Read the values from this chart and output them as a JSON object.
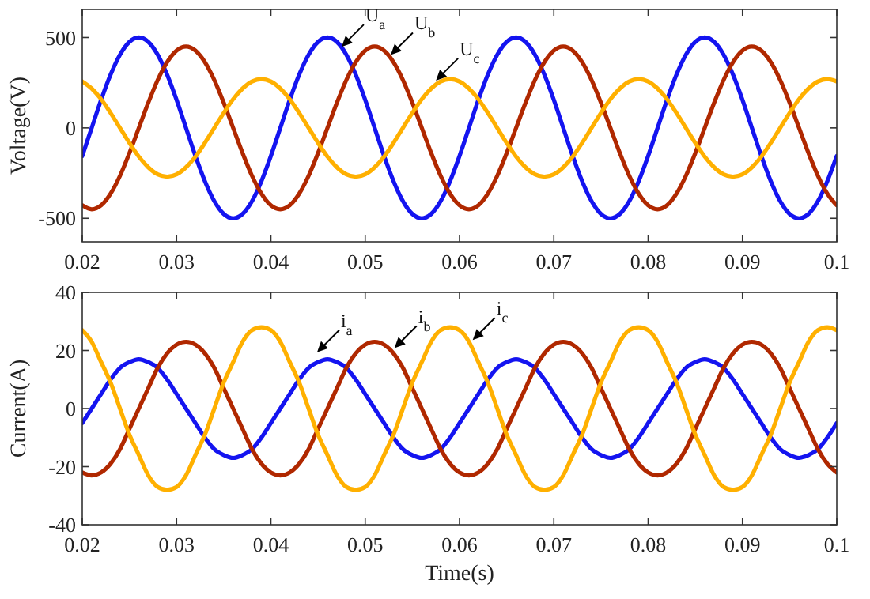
{
  "chart_data": [
    {
      "type": "line",
      "ylabel": "Voltage(V)",
      "xlim": [
        0.02,
        0.1
      ],
      "xticks": [
        0.02,
        0.03,
        0.04,
        0.05,
        0.06,
        0.07,
        0.08,
        0.09,
        0.1
      ],
      "ylim": [
        -630,
        655
      ],
      "yticks": [
        -500,
        0,
        500
      ],
      "x": [
        0.02,
        0.021,
        0.022,
        0.023,
        0.024,
        0.025,
        0.026,
        0.027,
        0.028,
        0.029,
        0.03,
        0.031,
        0.032,
        0.033,
        0.034,
        0.035,
        0.036,
        0.037,
        0.038,
        0.039,
        0.04,
        0.041,
        0.042,
        0.043,
        0.044,
        0.045,
        0.046,
        0.047,
        0.048,
        0.049,
        0.05,
        0.051,
        0.052,
        0.053,
        0.054,
        0.055,
        0.056,
        0.057,
        0.058,
        0.059,
        0.06,
        0.061,
        0.062,
        0.063,
        0.064,
        0.065,
        0.066,
        0.067,
        0.068,
        0.069,
        0.07,
        0.071,
        0.072,
        0.073,
        0.074,
        0.075,
        0.076,
        0.077,
        0.078,
        0.079,
        0.08,
        0.081,
        0.082,
        0.083,
        0.084,
        0.085,
        0.086,
        0.087,
        0.088,
        0.089,
        0.09,
        0.091,
        0.092,
        0.093,
        0.094,
        0.095,
        0.096,
        0.097,
        0.098,
        0.099,
        0.1
      ],
      "series": [
        {
          "color": "#1414f0",
          "values": [
            -155,
            0,
            155,
            294,
            405,
            476,
            500,
            476,
            405,
            294,
            155,
            0,
            -155,
            -294,
            -405,
            -476,
            -500,
            -476,
            -405,
            -294,
            -155,
            0,
            155,
            294,
            405,
            476,
            500,
            476,
            405,
            294,
            155,
            0,
            -155,
            -294,
            -405,
            -476,
            -500,
            -476,
            -405,
            -294,
            -155,
            0,
            155,
            294,
            405,
            476,
            500,
            476,
            405,
            294,
            155,
            0,
            -155,
            -294,
            -405,
            -476,
            -500,
            -476,
            -405,
            -294,
            -155,
            0,
            155,
            294,
            405,
            476,
            500,
            476,
            405,
            294,
            155,
            0,
            -155,
            -294,
            -405,
            -476,
            -500,
            -476,
            -405,
            -294,
            -155
          ]
        },
        {
          "color": "#b02800",
          "values": [
            -428,
            -450,
            -428,
            -364,
            -265,
            -139,
            0,
            139,
            265,
            364,
            428,
            450,
            428,
            364,
            265,
            139,
            0,
            -139,
            -265,
            -364,
            -428,
            -450,
            -428,
            -364,
            -265,
            -139,
            0,
            139,
            265,
            364,
            428,
            450,
            428,
            364,
            265,
            139,
            0,
            -139,
            -265,
            -364,
            -428,
            -450,
            -428,
            -364,
            -265,
            -139,
            0,
            139,
            265,
            364,
            428,
            450,
            428,
            364,
            265,
            139,
            0,
            -139,
            -265,
            -364,
            -428,
            -450,
            -428,
            -364,
            -265,
            -139,
            0,
            139,
            265,
            364,
            428,
            450,
            428,
            364,
            265,
            139,
            0,
            -139,
            -265,
            -364,
            -428
          ]
        },
        {
          "color": "#ffb000",
          "values": [
            257,
            218,
            159,
            83,
            0,
            -83,
            -159,
            -218,
            -257,
            -270,
            -257,
            -218,
            -159,
            -83,
            0,
            83,
            159,
            218,
            257,
            270,
            257,
            218,
            159,
            83,
            0,
            -83,
            -159,
            -218,
            -257,
            -270,
            -257,
            -218,
            -159,
            -83,
            0,
            83,
            159,
            218,
            257,
            270,
            257,
            218,
            159,
            83,
            0,
            -83,
            -159,
            -218,
            -257,
            -270,
            -257,
            -218,
            -159,
            -83,
            0,
            83,
            159,
            218,
            257,
            270,
            257,
            218,
            159,
            83,
            0,
            -83,
            -159,
            -218,
            -257,
            -270,
            -257,
            -218,
            -159,
            -83,
            0,
            83,
            159,
            218,
            257,
            270,
            257
          ]
        }
      ],
      "annotations": [
        {
          "text": "U$_{a}$",
          "x": 0.0475,
          "y": 449
        },
        {
          "text": "U$_{b}$",
          "x": 0.0527,
          "y": 404
        },
        {
          "text": "U$_{c}$",
          "x": 0.0575,
          "y": 262
        }
      ]
    },
    {
      "type": "line",
      "xlabel": "Time(s)",
      "ylabel": "Current(A)",
      "xlim": [
        0.02,
        0.1
      ],
      "xticks": [
        0.02,
        0.03,
        0.04,
        0.05,
        0.06,
        0.07,
        0.08,
        0.09,
        0.1
      ],
      "ylim": [
        -40,
        40
      ],
      "yticks": [
        -40,
        -20,
        0,
        20,
        40
      ],
      "x": [
        0.02,
        0.021,
        0.022,
        0.023,
        0.024,
        0.025,
        0.026,
        0.027,
        0.028,
        0.029,
        0.03,
        0.031,
        0.032,
        0.033,
        0.034,
        0.035,
        0.036,
        0.037,
        0.038,
        0.039,
        0.04,
        0.041,
        0.042,
        0.043,
        0.044,
        0.045,
        0.046,
        0.047,
        0.048,
        0.049,
        0.05,
        0.051,
        0.052,
        0.053,
        0.054,
        0.055,
        0.056,
        0.057,
        0.058,
        0.059,
        0.06,
        0.061,
        0.062,
        0.063,
        0.064,
        0.065,
        0.066,
        0.067,
        0.068,
        0.069,
        0.07,
        0.071,
        0.072,
        0.073,
        0.074,
        0.075,
        0.076,
        0.077,
        0.078,
        0.079,
        0.08,
        0.081,
        0.082,
        0.083,
        0.084,
        0.085,
        0.086,
        0.087,
        0.088,
        0.089,
        0.09,
        0.091,
        0.092,
        0.093,
        0.094,
        0.095,
        0.096,
        0.097,
        0.098,
        0.099,
        0.1
      ],
      "series": [
        {
          "color": "#1414f0",
          "values": [
            -5,
            0,
            5,
            10,
            14,
            16,
            17,
            16,
            14,
            10,
            5,
            0,
            -5,
            -10,
            -14,
            -16,
            -17,
            -16,
            -14,
            -10,
            -5,
            0,
            5,
            10,
            14,
            16,
            17,
            16,
            14,
            10,
            5,
            0,
            -5,
            -10,
            -14,
            -16,
            -17,
            -16,
            -14,
            -10,
            -5,
            0,
            5,
            10,
            14,
            16,
            17,
            16,
            14,
            10,
            5,
            0,
            -5,
            -10,
            -14,
            -16,
            -17,
            -16,
            -14,
            -10,
            -5,
            0,
            5,
            10,
            14,
            16,
            17,
            16,
            14,
            10,
            5,
            0,
            -5,
            -10,
            -14,
            -16,
            -17,
            -16,
            -14,
            -10,
            -5
          ]
        },
        {
          "color": "#b02800",
          "values": [
            -22,
            -23,
            -22,
            -19,
            -14,
            -7,
            0,
            7,
            14,
            19,
            22,
            23,
            22,
            19,
            14,
            7,
            0,
            -7,
            -14,
            -19,
            -22,
            -23,
            -22,
            -19,
            -14,
            -7,
            0,
            7,
            14,
            19,
            22,
            23,
            22,
            19,
            14,
            7,
            0,
            -7,
            -14,
            -19,
            -22,
            -23,
            -22,
            -19,
            -14,
            -7,
            0,
            7,
            14,
            19,
            22,
            23,
            22,
            19,
            14,
            7,
            0,
            -7,
            -14,
            -19,
            -22,
            -23,
            -22,
            -19,
            -14,
            -7,
            0,
            7,
            14,
            19,
            22,
            23,
            22,
            19,
            14,
            7,
            0,
            -7,
            -14,
            -19,
            -22
          ]
        },
        {
          "color": "#ffb000",
          "values": [
            27,
            23,
            16,
            9,
            0,
            -9,
            -16,
            -23,
            -27,
            -28,
            -27,
            -23,
            -16,
            -9,
            0,
            9,
            16,
            23,
            27,
            28,
            27,
            23,
            16,
            9,
            0,
            -9,
            -16,
            -23,
            -27,
            -28,
            -27,
            -23,
            -16,
            -9,
            0,
            9,
            16,
            23,
            27,
            28,
            27,
            23,
            16,
            9,
            0,
            -9,
            -16,
            -23,
            -27,
            -28,
            -27,
            -23,
            -16,
            -9,
            0,
            9,
            16,
            23,
            27,
            28,
            27,
            23,
            16,
            9,
            0,
            -9,
            -16,
            -23,
            -27,
            -28,
            -27,
            -23,
            -16,
            -9,
            0,
            9,
            16,
            23,
            27,
            28,
            27
          ]
        }
      ],
      "annotations": [
        {
          "text": "i$_{a}$",
          "x": 0.0449,
          "y": 19.4
        },
        {
          "text": "i$_{b}$",
          "x": 0.0531,
          "y": 20.8
        },
        {
          "text": "i$_{c}$",
          "x": 0.0614,
          "y": 23.6
        }
      ]
    }
  ]
}
